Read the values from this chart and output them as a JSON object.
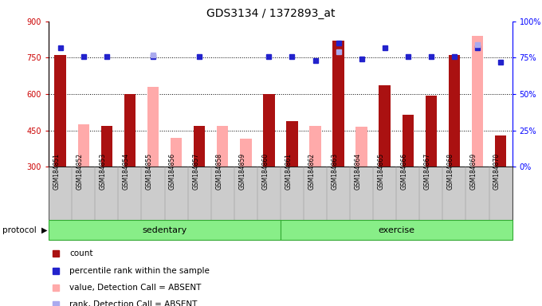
{
  "title": "GDS3134 / 1372893_at",
  "samples": [
    "GSM184851",
    "GSM184852",
    "GSM184853",
    "GSM184854",
    "GSM184855",
    "GSM184856",
    "GSM184857",
    "GSM184858",
    "GSM184859",
    "GSM184860",
    "GSM184861",
    "GSM184862",
    "GSM184863",
    "GSM184864",
    "GSM184865",
    "GSM184866",
    "GSM184867",
    "GSM184868",
    "GSM184869",
    "GSM184870"
  ],
  "count_values": [
    760,
    null,
    470,
    600,
    null,
    null,
    470,
    null,
    null,
    600,
    490,
    null,
    820,
    null,
    635,
    515,
    595,
    760,
    null,
    430
  ],
  "count_absent_values": [
    null,
    475,
    null,
    null,
    630,
    420,
    null,
    470,
    415,
    null,
    null,
    470,
    null,
    465,
    null,
    null,
    null,
    null,
    840,
    null
  ],
  "percentile_rank": [
    82,
    76,
    76,
    null,
    76,
    null,
    76,
    null,
    null,
    76,
    76,
    73,
    85,
    74,
    82,
    76,
    76,
    76,
    82,
    72
  ],
  "percentile_rank_absent": [
    null,
    null,
    null,
    null,
    77,
    null,
    null,
    null,
    null,
    null,
    null,
    null,
    79,
    null,
    null,
    null,
    null,
    null,
    84,
    null
  ],
  "ylim_left": [
    300,
    900
  ],
  "ylim_right": [
    0,
    100
  ],
  "yticks_left": [
    300,
    450,
    600,
    750,
    900
  ],
  "yticks_right": [
    0,
    25,
    50,
    75,
    100
  ],
  "ytick_labels_right": [
    "0%",
    "25%",
    "50%",
    "75%",
    "100%"
  ],
  "groups": [
    {
      "label": "sedentary",
      "start": 0,
      "end": 10
    },
    {
      "label": "exercise",
      "start": 10,
      "end": 20
    }
  ],
  "protocol_label": "protocol",
  "bar_color_count": "#aa1111",
  "bar_color_absent": "#ffaaaa",
  "dot_color_rank": "#2222cc",
  "dot_color_rank_absent": "#aaaaee",
  "group_bg_color": "#88ee88",
  "group_border_color": "#33aa33",
  "tick_label_bg": "#cccccc",
  "legend_items": [
    {
      "color": "#aa1111",
      "label": "count"
    },
    {
      "color": "#2222cc",
      "label": "percentile rank within the sample"
    },
    {
      "color": "#ffaaaa",
      "label": "value, Detection Call = ABSENT"
    },
    {
      "color": "#aaaaee",
      "label": "rank, Detection Call = ABSENT"
    }
  ]
}
